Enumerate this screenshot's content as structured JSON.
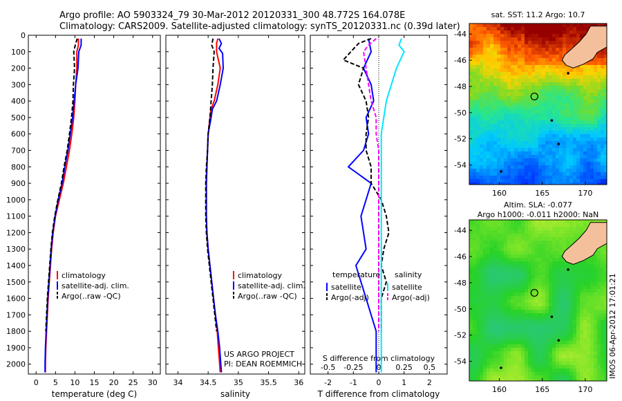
{
  "header": {
    "line1": "Argo profile: AO 5903324_79 30-Mar-2012 20120331_300 48.772S 164.078E",
    "line2": "Climatology: CARS2009. Satellite-adjusted climatology: synTS_20120331.nc (0.39d later)"
  },
  "colors": {
    "climatology": "#ff0000",
    "satellite": "#0000ff",
    "argo": "#000000",
    "satellite_salinity": "#00e5ff",
    "argo_salinity": "#ff00ff",
    "land": "#f4c09c"
  },
  "depth_ticks": [
    0,
    100,
    200,
    300,
    400,
    500,
    600,
    700,
    800,
    900,
    1000,
    1100,
    1200,
    1300,
    1400,
    1500,
    1600,
    1700,
    1800,
    1900,
    2000
  ],
  "chart_data": [
    {
      "type": "line",
      "title": "",
      "xlabel": "temperature (deg C)",
      "ylabel": "",
      "xlim": [
        -2,
        32
      ],
      "ylim": [
        2060,
        0
      ],
      "xticks": [
        0,
        5,
        10,
        15,
        20,
        25,
        30
      ],
      "legend_position": "lower-middle",
      "series": [
        {
          "name": "climatology",
          "style": "solid",
          "color": "#ff0000",
          "points": [
            [
              10.9,
              20
            ],
            [
              10.9,
              60
            ],
            [
              10.5,
              100
            ],
            [
              10.5,
              200
            ],
            [
              10.2,
              300
            ],
            [
              10,
              400
            ],
            [
              9.7,
              500
            ],
            [
              9.2,
              600
            ],
            [
              8.6,
              700
            ],
            [
              7.8,
              800
            ],
            [
              7,
              900
            ],
            [
              6,
              1000
            ],
            [
              5,
              1100
            ],
            [
              4.4,
              1200
            ],
            [
              4,
              1300
            ],
            [
              3.7,
              1400
            ],
            [
              3.4,
              1500
            ],
            [
              3.1,
              1600
            ],
            [
              2.9,
              1700
            ],
            [
              2.7,
              1800
            ],
            [
              2.5,
              1900
            ],
            [
              2.4,
              2000
            ],
            [
              2.4,
              2050
            ]
          ]
        },
        {
          "name": "satellite-adj. clim.",
          "style": "solid",
          "color": "#0000ff",
          "points": [
            [
              11.6,
              20
            ],
            [
              11.6,
              60
            ],
            [
              11,
              100
            ],
            [
              10.8,
              200
            ],
            [
              10.2,
              300
            ],
            [
              9.8,
              400
            ],
            [
              9.4,
              500
            ],
            [
              8.8,
              600
            ],
            [
              8.2,
              700
            ],
            [
              7.4,
              800
            ],
            [
              6.7,
              900
            ],
            [
              5.7,
              1000
            ],
            [
              4.9,
              1100
            ],
            [
              4.3,
              1200
            ],
            [
              3.9,
              1300
            ],
            [
              3.6,
              1400
            ],
            [
              3.3,
              1500
            ],
            [
              3,
              1600
            ],
            [
              2.8,
              1700
            ],
            [
              2.6,
              1800
            ],
            [
              2.4,
              1900
            ],
            [
              2.3,
              2000
            ],
            [
              2.3,
              2050
            ]
          ]
        },
        {
          "name": "Argo(..raw -QC)",
          "style": "dashed",
          "color": "#000000",
          "points": [
            [
              10.6,
              20
            ],
            [
              10.2,
              50
            ],
            [
              9.7,
              100
            ],
            [
              9.9,
              200
            ],
            [
              9.6,
              300
            ],
            [
              9.5,
              400
            ],
            [
              9.1,
              500
            ],
            [
              8.6,
              600
            ],
            [
              8,
              700
            ],
            [
              7.2,
              800
            ],
            [
              6.5,
              900
            ],
            [
              5.6,
              1000
            ],
            [
              4.8,
              1100
            ],
            [
              4.2,
              1200
            ],
            [
              3.8,
              1300
            ],
            [
              3.5,
              1400
            ],
            [
              3.2,
              1500
            ],
            [
              2.9,
              1600
            ],
            [
              2.7,
              1700
            ],
            [
              2.5,
              1800
            ]
          ]
        }
      ]
    },
    {
      "type": "line",
      "title": "",
      "xlabel": "salinity",
      "ylabel": "",
      "xlim": [
        33.8,
        36.1
      ],
      "ylim": [
        2060,
        0
      ],
      "xticks": [
        34,
        34.5,
        35,
        35.5,
        36
      ],
      "xtick_labels": [
        "34",
        "34.5",
        "35",
        "35.5",
        "36"
      ],
      "legend_position": "lower-middle",
      "annotation": [
        "US ARGO PROJECT",
        "PI: DEAN ROEMMICH"
      ],
      "series": [
        {
          "name": "climatology",
          "style": "solid",
          "color": "#ff0000",
          "points": [
            [
              34.66,
              20
            ],
            [
              34.64,
              50
            ],
            [
              34.64,
              100
            ],
            [
              34.67,
              150
            ],
            [
              34.7,
              200
            ],
            [
              34.66,
              300
            ],
            [
              34.6,
              400
            ],
            [
              34.55,
              450
            ],
            [
              34.53,
              500
            ],
            [
              34.5,
              600
            ],
            [
              34.49,
              700
            ],
            [
              34.48,
              800
            ],
            [
              34.47,
              900
            ],
            [
              34.47,
              1000
            ],
            [
              34.47,
              1100
            ],
            [
              34.48,
              1200
            ],
            [
              34.5,
              1300
            ],
            [
              34.53,
              1400
            ],
            [
              34.56,
              1500
            ],
            [
              34.59,
              1600
            ],
            [
              34.62,
              1700
            ],
            [
              34.65,
              1800
            ],
            [
              34.67,
              1900
            ],
            [
              34.69,
              2000
            ],
            [
              34.7,
              2050
            ]
          ]
        },
        {
          "name": "satellite-adj. clim.",
          "style": "solid",
          "color": "#0000ff",
          "points": [
            [
              34.68,
              20
            ],
            [
              34.72,
              50
            ],
            [
              34.68,
              80
            ],
            [
              34.74,
              110
            ],
            [
              34.75,
              200
            ],
            [
              34.7,
              300
            ],
            [
              34.64,
              400
            ],
            [
              34.57,
              450
            ],
            [
              34.55,
              500
            ],
            [
              34.5,
              600
            ],
            [
              34.49,
              700
            ],
            [
              34.48,
              800
            ],
            [
              34.47,
              900
            ],
            [
              34.47,
              1000
            ],
            [
              34.47,
              1100
            ],
            [
              34.48,
              1200
            ],
            [
              34.5,
              1300
            ],
            [
              34.53,
              1400
            ],
            [
              34.56,
              1500
            ],
            [
              34.59,
              1600
            ],
            [
              34.62,
              1700
            ],
            [
              34.66,
              1800
            ],
            [
              34.69,
              1900
            ],
            [
              34.71,
              2000
            ],
            [
              34.72,
              2050
            ]
          ]
        },
        {
          "name": "Argo(..raw -QC)",
          "style": "dashed",
          "color": "#000000",
          "points": [
            [
              34.58,
              20
            ],
            [
              34.56,
              60
            ],
            [
              34.6,
              100
            ],
            [
              34.58,
              200
            ],
            [
              34.57,
              300
            ],
            [
              34.55,
              400
            ],
            [
              34.53,
              500
            ],
            [
              34.5,
              600
            ],
            [
              34.49,
              700
            ],
            [
              34.47,
              800
            ],
            [
              34.46,
              900
            ],
            [
              34.46,
              1000
            ],
            [
              34.46,
              1100
            ],
            [
              34.47,
              1200
            ],
            [
              34.49,
              1300
            ],
            [
              34.52,
              1400
            ],
            [
              34.55,
              1500
            ],
            [
              34.58,
              1600
            ],
            [
              34.61,
              1700
            ],
            [
              34.64,
              1800
            ]
          ]
        }
      ]
    },
    {
      "type": "line",
      "title": "",
      "xlabel": "T difference from climatology",
      "ylabel": "",
      "xlim": [
        -2.7,
        2.7
      ],
      "ylim": [
        2060,
        0
      ],
      "xticks": [
        -2,
        -1,
        0,
        1,
        2
      ],
      "top_axis_label": "S difference from climatology",
      "top_ticks": [
        -0.5,
        -0.25,
        0,
        0.25,
        0.5
      ],
      "top_tick_labels": [
        "-0.5",
        "-0.25",
        "0",
        "0.25",
        "0.5"
      ],
      "legend_groups": [
        {
          "title": "temperature",
          "entries": [
            "satellite",
            "Argo(-adj)"
          ]
        },
        {
          "title": "salinity",
          "entries": [
            "satellite",
            "Argo(-adj)"
          ]
        }
      ],
      "series": [
        {
          "name": "satellite",
          "group": "temperature",
          "style": "solid",
          "color": "#0000ff",
          "points": [
            [
              -0.4,
              20
            ],
            [
              -0.3,
              100
            ],
            [
              -0.6,
              200
            ],
            [
              -0.3,
              300
            ],
            [
              -0.2,
              400
            ],
            [
              -0.5,
              500
            ],
            [
              -0.4,
              600
            ],
            [
              -0.6,
              700
            ],
            [
              -1.2,
              800
            ],
            [
              -0.3,
              900
            ],
            [
              -0.5,
              1000
            ],
            [
              -0.7,
              1100
            ],
            [
              -0.6,
              1200
            ],
            [
              -0.5,
              1300
            ],
            [
              -0.9,
              1400
            ],
            [
              -0.7,
              1500
            ],
            [
              -0.5,
              1600
            ],
            [
              -0.3,
              1700
            ],
            [
              -0.1,
              1800
            ],
            [
              -0.1,
              1900
            ],
            [
              -0.1,
              2000
            ],
            [
              -0.1,
              2050
            ]
          ]
        },
        {
          "name": "Argo(-adj)",
          "group": "temperature",
          "style": "dashed",
          "color": "#000000",
          "points": [
            [
              -0.3,
              20
            ],
            [
              -0.8,
              50
            ],
            [
              -1.4,
              150
            ],
            [
              -0.6,
              200
            ],
            [
              -0.8,
              300
            ],
            [
              -0.5,
              400
            ],
            [
              -0.4,
              500
            ],
            [
              -0.5,
              600
            ],
            [
              -0.5,
              700
            ],
            [
              -0.3,
              800
            ],
            [
              -0.3,
              900
            ],
            [
              0.1,
              1000
            ],
            [
              0.3,
              1100
            ],
            [
              0.4,
              1200
            ],
            [
              0.2,
              1300
            ],
            [
              0.1,
              1400
            ],
            [
              0.3,
              1500
            ],
            [
              0.1,
              1600
            ],
            [
              0.1,
              1700
            ],
            [
              0.1,
              1800
            ]
          ]
        },
        {
          "name": "satellite",
          "group": "salinity",
          "style": "solid",
          "color": "#00e5ff",
          "points": [
            [
              0.9,
              20
            ],
            [
              0.8,
              60
            ],
            [
              1,
              100
            ],
            [
              0.7,
              200
            ],
            [
              0.5,
              300
            ],
            [
              0.3,
              400
            ],
            [
              0.2,
              500
            ],
            [
              0.1,
              600
            ],
            [
              0.1,
              700
            ],
            [
              0.1,
              800
            ],
            [
              0.1,
              900
            ],
            [
              0.1,
              1000
            ],
            [
              0.1,
              1100
            ],
            [
              0.1,
              1200
            ],
            [
              0.1,
              1300
            ],
            [
              0.1,
              1400
            ],
            [
              0.1,
              1500
            ],
            [
              0.1,
              1600
            ],
            [
              0.1,
              1700
            ],
            [
              0.1,
              1800
            ],
            [
              0.1,
              1900
            ],
            [
              0.1,
              2000
            ],
            [
              0.1,
              2050
            ]
          ]
        },
        {
          "name": "Argo(-adj)",
          "group": "salinity",
          "style": "dashed",
          "color": "#ff00ff",
          "points": [
            [
              -0.1,
              20
            ],
            [
              -0.4,
              60
            ],
            [
              -0.6,
              100
            ],
            [
              -0.5,
              200
            ],
            [
              -0.4,
              300
            ],
            [
              -0.3,
              400
            ],
            [
              -0.1,
              500
            ],
            [
              -0.1,
              600
            ],
            [
              0,
              700
            ],
            [
              0,
              800
            ],
            [
              0,
              900
            ],
            [
              0,
              1000
            ],
            [
              0,
              1100
            ],
            [
              0,
              1200
            ],
            [
              0,
              1300
            ],
            [
              0,
              1400
            ],
            [
              0,
              1500
            ],
            [
              0,
              1600
            ],
            [
              0,
              1700
            ],
            [
              0,
              1800
            ]
          ]
        }
      ]
    },
    {
      "type": "heatmap",
      "title": "sat. SST: 11.2  Argo: 10.7",
      "xlim": [
        156.5,
        172.5
      ],
      "ylim": [
        -55.5,
        -43.2
      ],
      "xticks": [
        160,
        165,
        170
      ],
      "yticks": [
        -44,
        -46,
        -48,
        -50,
        -52,
        -54
      ],
      "marker": {
        "lon": 164.078,
        "lat": -48.772
      }
    },
    {
      "type": "heatmap",
      "title": "Altim. SLA: -0.077",
      "subtitle": "Argo h1000: -0.011 h2000: NaN",
      "xlim": [
        156.5,
        172.5
      ],
      "ylim": [
        -55.5,
        -43.2
      ],
      "xticks": [
        160,
        165,
        170
      ],
      "yticks": [
        -44,
        -46,
        -48,
        -50,
        -52,
        -54
      ],
      "marker": {
        "lon": 164.078,
        "lat": -48.772
      },
      "side_label": "IMOS 06-Apr-2012 17:01:21"
    }
  ]
}
